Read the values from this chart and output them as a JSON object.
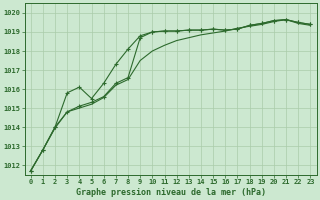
{
  "title": "Graphe pression niveau de la mer (hPa)",
  "background_color": "#cce8d0",
  "grid_color": "#aaccaa",
  "line_color": "#2d6a2d",
  "xlim": [
    -0.5,
    23.5
  ],
  "ylim": [
    1011.5,
    1020.5
  ],
  "yticks": [
    1012,
    1013,
    1014,
    1015,
    1016,
    1017,
    1018,
    1019,
    1020
  ],
  "xticks": [
    0,
    1,
    2,
    3,
    4,
    5,
    6,
    7,
    8,
    9,
    10,
    11,
    12,
    13,
    14,
    15,
    16,
    17,
    18,
    19,
    20,
    21,
    22,
    23
  ],
  "series1_x": [
    0,
    1,
    2,
    3,
    4,
    5,
    6,
    7,
    8,
    9,
    10,
    11,
    12,
    13,
    14,
    15,
    16,
    17,
    18,
    19,
    20,
    21,
    22,
    23
  ],
  "series1_y": [
    1011.7,
    1012.8,
    1014.0,
    1014.8,
    1015.1,
    1015.3,
    1015.6,
    1016.3,
    1016.6,
    1018.7,
    1019.0,
    1019.05,
    1019.05,
    1019.1,
    1019.1,
    1019.15,
    1019.1,
    1019.15,
    1019.35,
    1019.45,
    1019.6,
    1019.65,
    1019.5,
    1019.4
  ],
  "series2_x": [
    0,
    1,
    2,
    3,
    4,
    5,
    6,
    7,
    8,
    9,
    10,
    11,
    12,
    13,
    14,
    15,
    16,
    17,
    18,
    19,
    20,
    21,
    22,
    23
  ],
  "series2_y": [
    1011.7,
    1012.8,
    1014.0,
    1015.8,
    1016.1,
    1015.5,
    1016.3,
    1017.3,
    1018.1,
    1018.8,
    1019.0,
    1019.05,
    1019.05,
    1019.1,
    1019.1,
    1019.15,
    1019.1,
    1019.15,
    1019.35,
    1019.45,
    1019.6,
    1019.65,
    1019.5,
    1019.4
  ],
  "series3_x": [
    0,
    1,
    2,
    3,
    4,
    5,
    6,
    7,
    8,
    9,
    10,
    11,
    12,
    13,
    14,
    15,
    16,
    17,
    18,
    19,
    20,
    21,
    22,
    23
  ],
  "series3_y": [
    1011.7,
    1012.8,
    1013.95,
    1014.8,
    1015.0,
    1015.2,
    1015.55,
    1016.2,
    1016.5,
    1017.5,
    1018.0,
    1018.3,
    1018.55,
    1018.7,
    1018.85,
    1018.95,
    1019.05,
    1019.2,
    1019.3,
    1019.4,
    1019.55,
    1019.65,
    1019.45,
    1019.35
  ]
}
